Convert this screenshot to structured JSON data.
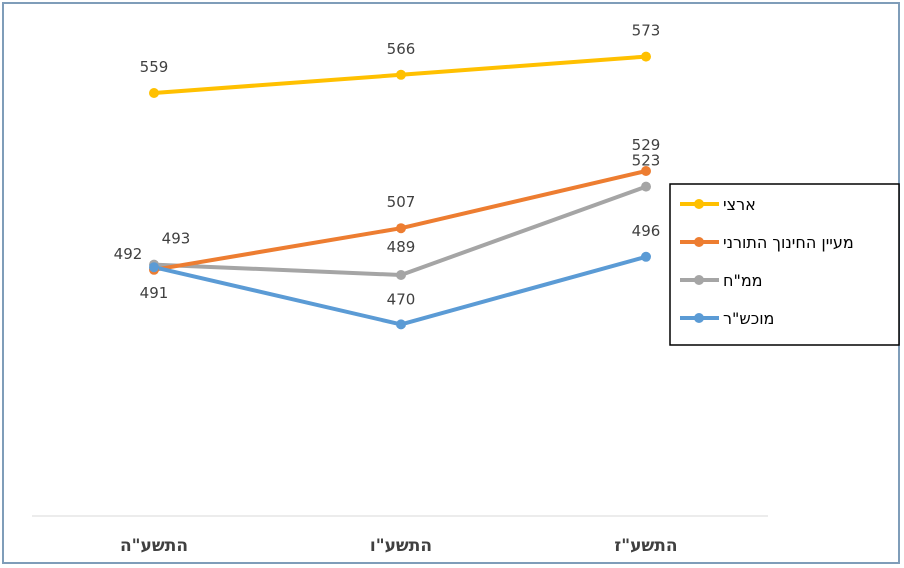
{
  "chart_data": {
    "type": "line",
    "categories": [
      "התשע\"ה",
      "התשע\"ו",
      "התשע\"ז"
    ],
    "series": [
      {
        "name": "ארצי",
        "color": "#ffc000",
        "values": [
          559,
          566,
          573
        ]
      },
      {
        "name": "מעיין החינוך התורני",
        "color": "#ed7d31",
        "values": [
          491,
          507,
          529
        ]
      },
      {
        "name": "ממ\"ח",
        "color": "#a5a5a5",
        "values": [
          493,
          489,
          523
        ]
      },
      {
        "name": "מוכש\"ר",
        "color": "#5b9bd5",
        "values": [
          492,
          470,
          496
        ]
      }
    ],
    "legend_position": "right",
    "grid": false,
    "data_labels": true
  }
}
